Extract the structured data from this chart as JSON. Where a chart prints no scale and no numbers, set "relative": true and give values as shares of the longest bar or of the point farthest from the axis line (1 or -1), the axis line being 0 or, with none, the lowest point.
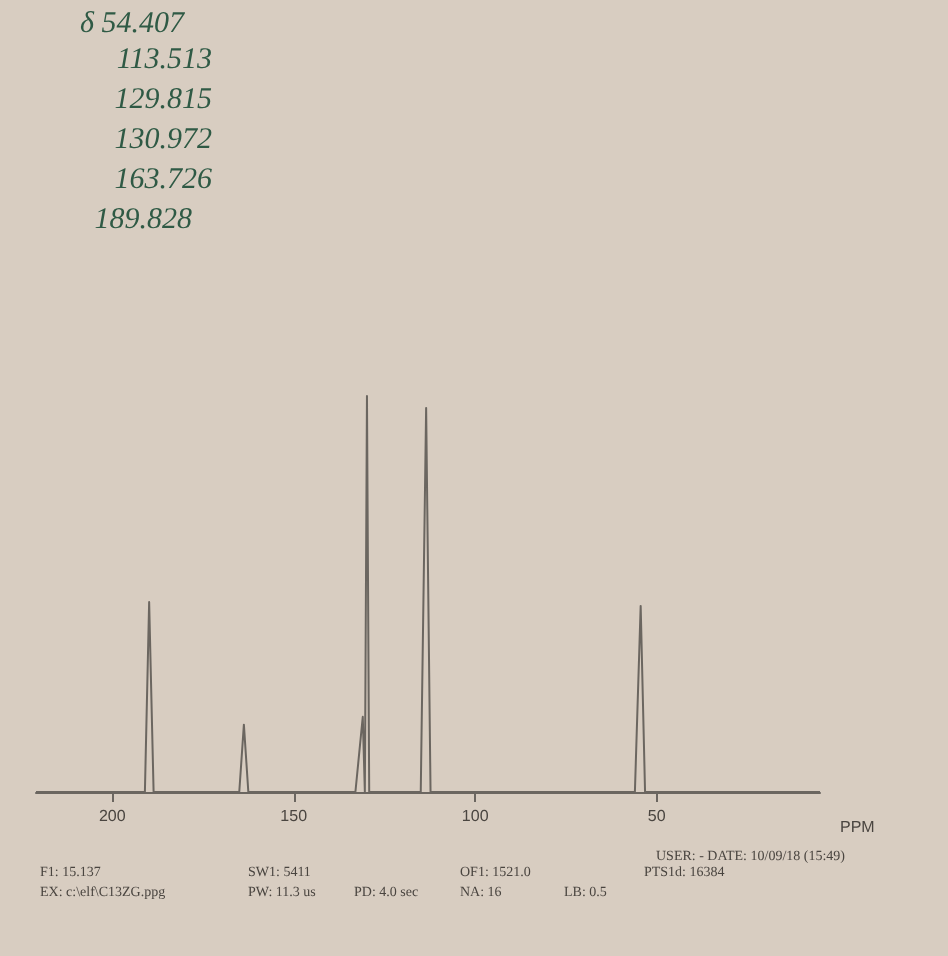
{
  "chart_data": {
    "type": "line",
    "relative": true,
    "xlabel": "PPM",
    "xlim": [
      221,
      5
    ],
    "xticks": [
      200,
      150,
      100,
      50
    ],
    "series": [
      {
        "color": "#6b6660",
        "x": [
          221,
          191,
          189.828,
          188.6,
          165,
          163.726,
          162.5,
          133,
          130.972,
          130.4,
          129.815,
          129.2,
          115,
          113.513,
          112.3,
          56,
          54.407,
          53.2,
          5
        ],
        "values": [
          0,
          0,
          0.48,
          0,
          0,
          0.17,
          0,
          0,
          0.19,
          0,
          1,
          0,
          0,
          0.97,
          0,
          0,
          0.47,
          0,
          0
        ]
      }
    ],
    "marker": "none",
    "grid": false,
    "annotations": [
      "δ 54.407",
      "113.513",
      "129.815",
      "130.972",
      "163.726",
      "189.828",
      "USER:  - DATE: 10/09/18 (15:49)",
      "F1: 15.137",
      "SW1: 5411",
      "OF1: 1521.0",
      "PTS1d: 16384",
      "EX: c:\\elf\\C13ZG.ppg",
      "PW: 11.3 us",
      "PD: 4.0  sec",
      "NA: 16",
      "LB: 0.5"
    ]
  }
}
